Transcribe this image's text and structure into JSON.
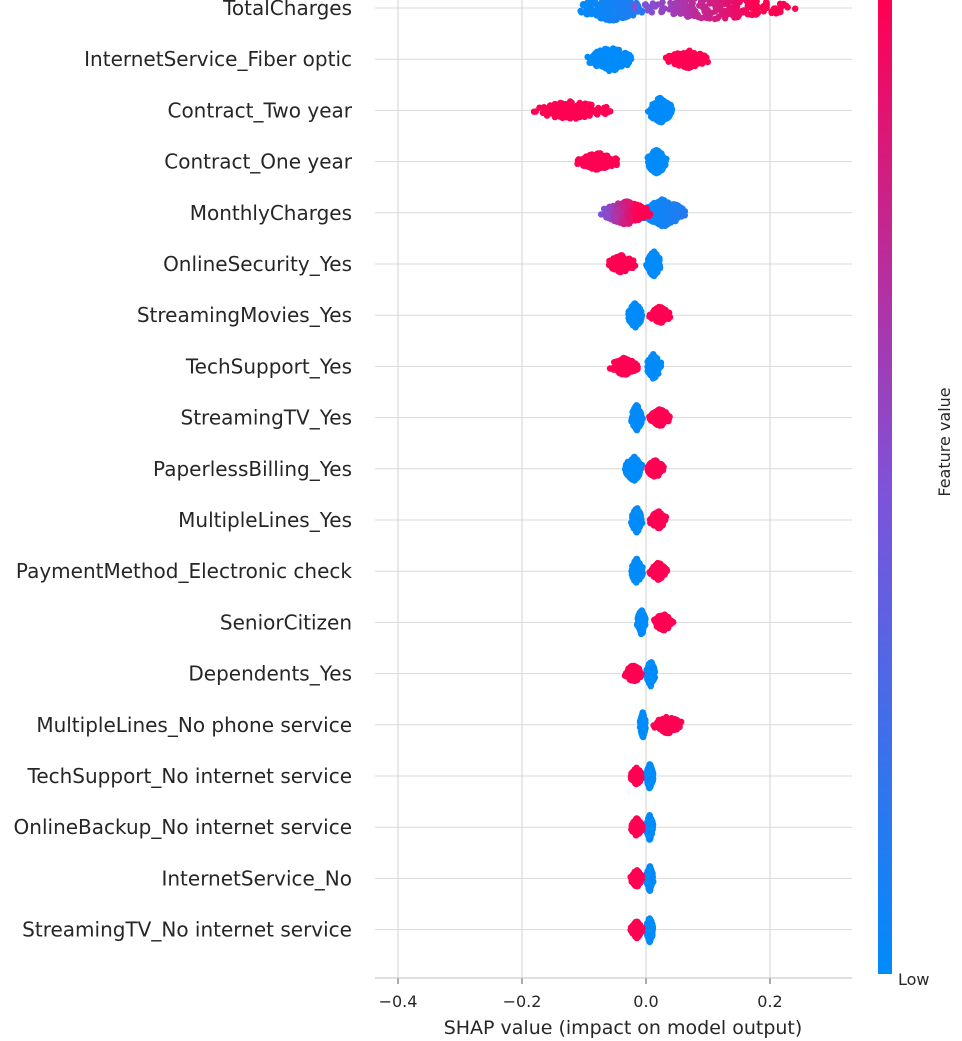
{
  "chart_data": {
    "type": "scatter",
    "subtype": "shap-beeswarm-summary",
    "xlabel": "SHAP value (impact on model output)",
    "x_ticks": [
      -0.4,
      -0.2,
      0.0,
      0.2
    ],
    "x_tick_labels": [
      "−0.4",
      "−0.2",
      "0.0",
      "0.2"
    ],
    "xlim": [
      -0.42,
      0.33
    ],
    "grid": true,
    "colorbar": {
      "label": "Feature value",
      "low_label": "Low",
      "low_color": "#008bfb",
      "high_color": "#ff0052"
    },
    "features": [
      {
        "name": "TotalCharges",
        "low_min": -0.11,
        "low_max": 0.0,
        "high_min": -0.02,
        "high_max": 0.25,
        "pattern": "gradient"
      },
      {
        "name": "InternetService_Fiber optic",
        "low_min": -0.095,
        "low_max": -0.02,
        "high_min": 0.03,
        "high_max": 0.105,
        "pattern": "binary"
      },
      {
        "name": "Contract_Two year",
        "low_min": 0.0,
        "low_max": 0.045,
        "high_min": -0.195,
        "high_max": -0.05,
        "pattern": "binary"
      },
      {
        "name": "Contract_One year",
        "low_min": 0.0,
        "low_max": 0.035,
        "high_min": -0.115,
        "high_max": -0.04,
        "pattern": "binary"
      },
      {
        "name": "MonthlyCharges",
        "low_min": -0.01,
        "low_max": 0.065,
        "high_min": -0.075,
        "high_max": 0.01,
        "pattern": "gradient"
      },
      {
        "name": "OnlineSecurity_Yes",
        "low_min": 0.0,
        "low_max": 0.025,
        "high_min": -0.065,
        "high_max": -0.015,
        "pattern": "binary"
      },
      {
        "name": "StreamingMovies_Yes",
        "low_min": -0.03,
        "low_max": -0.005,
        "high_min": 0.005,
        "high_max": 0.04,
        "pattern": "binary"
      },
      {
        "name": "TechSupport_Yes",
        "low_min": 0.0,
        "low_max": 0.025,
        "high_min": -0.06,
        "high_max": -0.01,
        "pattern": "binary"
      },
      {
        "name": "StreamingTV_Yes",
        "low_min": -0.025,
        "low_max": -0.005,
        "high_min": 0.005,
        "high_max": 0.04,
        "pattern": "binary"
      },
      {
        "name": "PaperlessBilling_Yes",
        "low_min": -0.035,
        "low_max": -0.005,
        "high_min": 0.0,
        "high_max": 0.03,
        "pattern": "binary"
      },
      {
        "name": "MultipleLines_Yes",
        "low_min": -0.025,
        "low_max": -0.005,
        "high_min": 0.005,
        "high_max": 0.035,
        "pattern": "binary"
      },
      {
        "name": "PaymentMethod_Electronic check",
        "low_min": -0.025,
        "low_max": -0.005,
        "high_min": 0.005,
        "high_max": 0.035,
        "pattern": "binary"
      },
      {
        "name": "SeniorCitizen",
        "low_min": -0.015,
        "low_max": 0.0,
        "high_min": 0.01,
        "high_max": 0.045,
        "pattern": "binary"
      },
      {
        "name": "Dependents_Yes",
        "low_min": 0.0,
        "low_max": 0.015,
        "high_min": -0.035,
        "high_max": -0.005,
        "pattern": "binary"
      },
      {
        "name": "MultipleLines_No phone service",
        "low_min": -0.01,
        "low_max": 0.0,
        "high_min": 0.01,
        "high_max": 0.06,
        "pattern": "binary"
      },
      {
        "name": "TechSupport_No internet service",
        "low_min": 0.0,
        "low_max": 0.012,
        "high_min": -0.025,
        "high_max": -0.005,
        "pattern": "binary"
      },
      {
        "name": "OnlineBackup_No internet service",
        "low_min": 0.0,
        "low_max": 0.012,
        "high_min": -0.025,
        "high_max": -0.005,
        "pattern": "binary"
      },
      {
        "name": "InternetService_No",
        "low_min": 0.0,
        "low_max": 0.012,
        "high_min": -0.025,
        "high_max": -0.005,
        "pattern": "binary"
      },
      {
        "name": "StreamingTV_No internet service",
        "low_min": 0.0,
        "low_max": 0.012,
        "high_min": -0.025,
        "high_max": -0.005,
        "pattern": "binary"
      }
    ]
  }
}
